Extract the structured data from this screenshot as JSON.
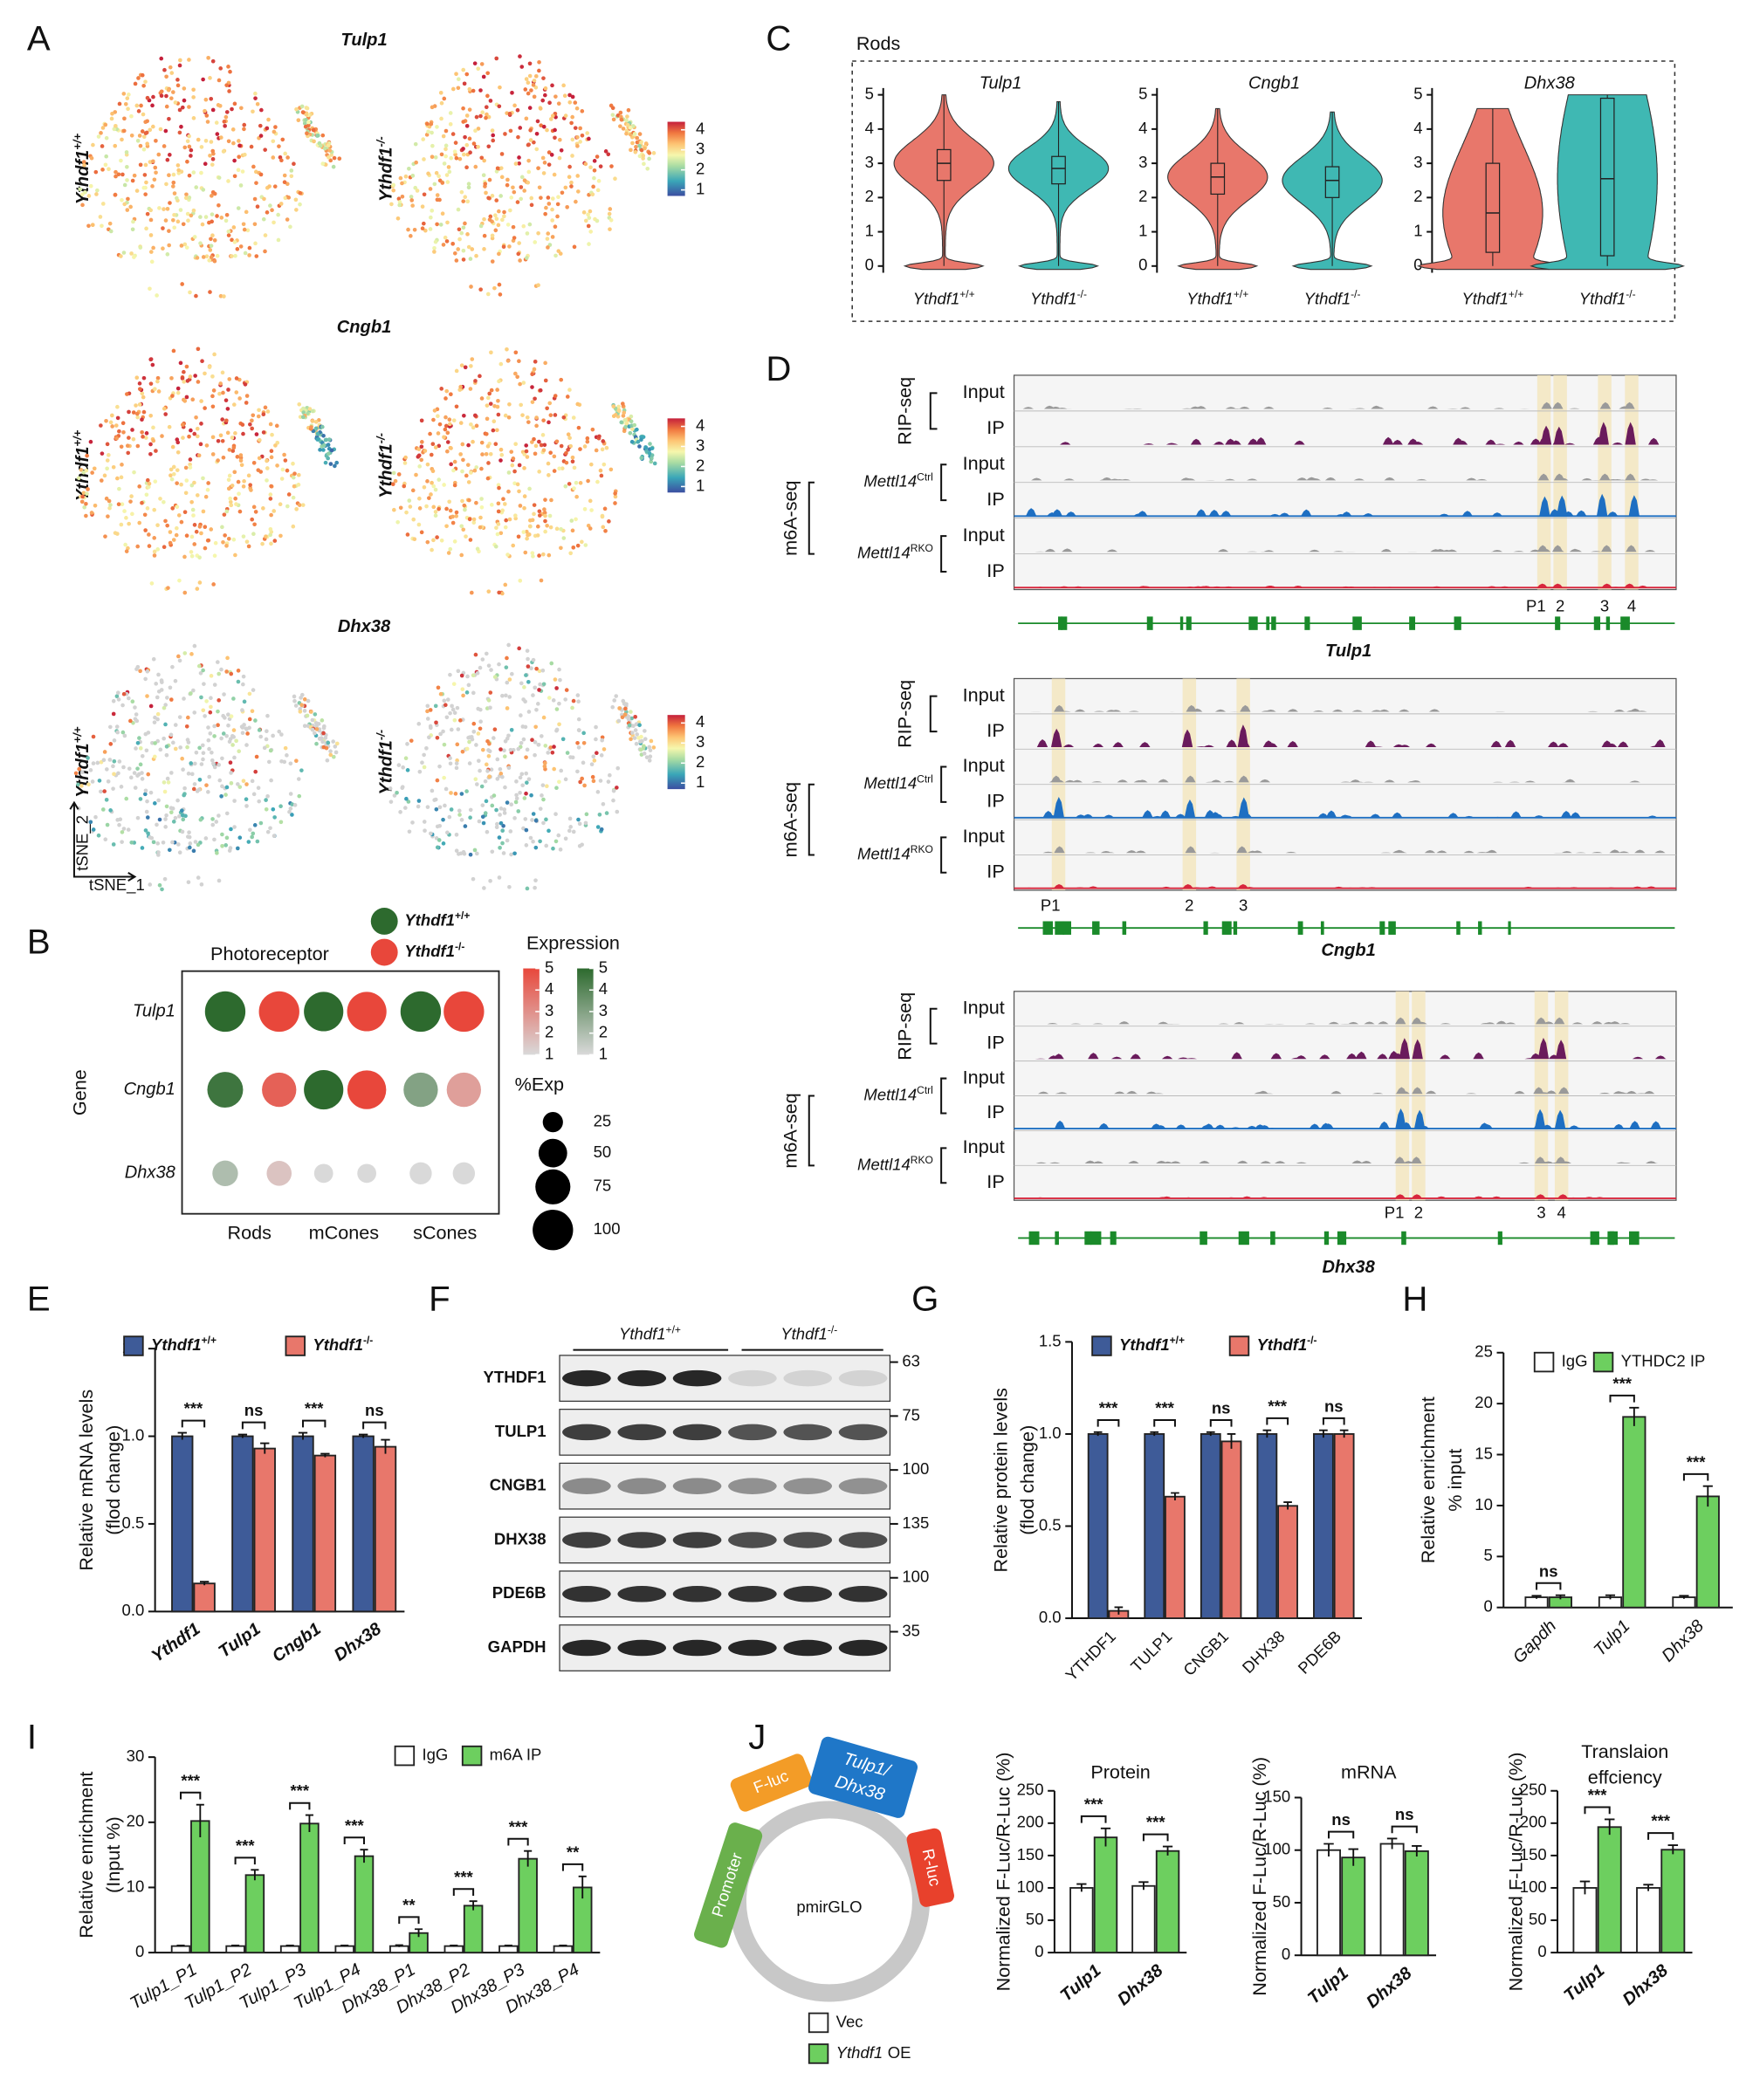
{
  "panel_labels": [
    "A",
    "B",
    "C",
    "D",
    "E",
    "F",
    "G",
    "H",
    "I",
    "J"
  ],
  "genotypes": [
    {
      "name": "Ythdf1",
      "sup": "+/+"
    },
    {
      "name": "Ythdf1",
      "sup": "-/-"
    }
  ],
  "tsne": {
    "genes": [
      "Tulp1",
      "Cngb1",
      "Dhx38"
    ],
    "colorbar_ticks": [
      1,
      2,
      3,
      4
    ],
    "colorbar_lim": [
      0.7,
      4.4
    ],
    "x_axis": "tSNE_1",
    "y_axis": "tSNE_2"
  },
  "violin": {
    "title": "Rods",
    "ylim": [
      0,
      5
    ],
    "yticks": [
      0,
      1,
      2,
      3,
      4,
      5
    ],
    "colors": [
      "#e8776b",
      "#3fb8b3"
    ],
    "genes": [
      "Tulp1",
      "Cngb1",
      "Dhx38"
    ],
    "boxes": [
      [
        [
          2.5,
          3.0,
          3.4
        ],
        [
          2.4,
          2.85,
          3.2
        ]
      ],
      [
        [
          2.1,
          2.6,
          3.0
        ],
        [
          2.0,
          2.5,
          2.9
        ]
      ],
      [
        [
          0.4,
          1.55,
          3.0
        ],
        [
          0.3,
          2.55,
          4.9
        ]
      ]
    ]
  },
  "dotplot": {
    "title": "Photoreceptor",
    "y_label": "Gene",
    "genes": [
      "Tulp1",
      "Cngb1",
      "Dhx38"
    ],
    "cell_types": [
      "Rods",
      "mCones",
      "sCones"
    ],
    "colors": [
      "#2d6a2e",
      "#e8473b"
    ],
    "expression_label": "Expression",
    "expression_ticks": [
      5,
      4,
      3,
      2,
      1
    ],
    "expression_lim": [
      1,
      5
    ],
    "size_label": "%Exp",
    "size_ticks": [
      25,
      50,
      75,
      100
    ],
    "expression": [
      [
        [
          5,
          5
        ],
        [
          5,
          5
        ],
        [
          5,
          5
        ]
      ],
      [
        [
          4.6,
          4.3
        ],
        [
          5,
          5
        ],
        [
          3.0,
          2.6
        ]
      ],
      [
        [
          2.0,
          1.6
        ],
        [
          1,
          1
        ],
        [
          1,
          1
        ]
      ]
    ],
    "pct": [
      [
        [
          100,
          100
        ],
        [
          95,
          95
        ],
        [
          100,
          100
        ]
      ],
      [
        [
          78,
          72
        ],
        [
          95,
          92
        ],
        [
          72,
          72
        ]
      ],
      [
        [
          40,
          38
        ],
        [
          22,
          22
        ],
        [
          30,
          30
        ]
      ]
    ]
  },
  "tracks": {
    "assays": [
      "RIP-seq",
      "m6A-seq"
    ],
    "rows": [
      "Input",
      "IP"
    ],
    "conditions": [
      {
        "name": "Mettl14",
        "sup": "Ctrl"
      },
      {
        "name": "Mettl14",
        "sup": "RKO"
      }
    ],
    "genes": [
      {
        "name": "Tulp1",
        "peaks": [
          "P1",
          "2",
          "3",
          "4"
        ]
      },
      {
        "name": "Cngb1",
        "peaks": [
          "P1",
          "2",
          "3"
        ]
      },
      {
        "name": "Dhx38",
        "peaks": [
          "P1",
          "2",
          "3",
          "4"
        ]
      }
    ]
  },
  "blot": {
    "proteins": [
      "YTHDF1",
      "TULP1",
      "CNGB1",
      "DHX38",
      "PDE6B",
      "GAPDH"
    ],
    "mw": [
      63,
      75,
      100,
      135,
      100,
      35
    ]
  },
  "plasmid": {
    "name": "pmirGLO",
    "promoter": "Promoter",
    "fluc": "F-luc",
    "insert": [
      "Tulp1/",
      "Dhx38"
    ],
    "rluc": "R-luc"
  },
  "bars": [
    {
      "type": "bar",
      "y_label": [
        "Relative mRNA levels",
        "(flod change)"
      ],
      "categories": [
        "Ythdf1",
        "Tulp1",
        "Cngb1",
        "Dhx38"
      ],
      "series": [
        {
          "name": "Ythdf1",
          "sup": "+/+",
          "color": "#3e5b98",
          "values": [
            1.0,
            1.0,
            1.0,
            1.0
          ],
          "errors": [
            0.02,
            0.01,
            0.02,
            0.01
          ]
        },
        {
          "name": "Ythdf1",
          "sup": "-/-",
          "color": "#e8776b",
          "values": [
            0.16,
            0.93,
            0.89,
            0.94
          ],
          "errors": [
            0.01,
            0.03,
            0.01,
            0.04
          ]
        }
      ],
      "significance": [
        "***",
        "ns",
        "***",
        "ns"
      ],
      "ylim": [
        0,
        1.5
      ],
      "yticks": [
        {
          "value": 0,
          "label": "0.0"
        },
        {
          "value": 0.5,
          "label": "0.5"
        },
        {
          "value": 1,
          "label": "1.0"
        },
        {
          "value": 1.5,
          "label": "1.5"
        }
      ]
    },
    {
      "type": "bar",
      "y_label": [
        "Relative protein levels",
        "(flod change)"
      ],
      "categories": [
        "YTHDF1",
        "TULP1",
        "CNGB1",
        "DHX38",
        "PDE6B"
      ],
      "series": [
        {
          "name": "Ythdf1",
          "sup": "+/+",
          "color": "#3e5b98",
          "values": [
            1.0,
            1.0,
            1.0,
            1.0,
            1.0
          ],
          "errors": [
            0.01,
            0.01,
            0.01,
            0.02,
            0.02
          ]
        },
        {
          "name": "Ythdf1",
          "sup": "-/-",
          "color": "#e8776b",
          "values": [
            0.04,
            0.66,
            0.96,
            0.61,
            1.0
          ],
          "errors": [
            0.02,
            0.02,
            0.04,
            0.02,
            0.02
          ]
        }
      ],
      "significance": [
        "***",
        "***",
        "ns",
        "***",
        "ns"
      ],
      "ylim": [
        0,
        1.5
      ],
      "yticks": [
        {
          "value": 0,
          "label": "0.0"
        },
        {
          "value": 0.5,
          "label": "0.5"
        },
        {
          "value": 1,
          "label": "1.0"
        },
        {
          "value": 1.5,
          "label": "1.5"
        }
      ]
    },
    {
      "type": "bar",
      "y_label": [
        "Relative enrichment",
        "% input"
      ],
      "categories": [
        "Gapdh",
        "Tulp1",
        "Dhx38"
      ],
      "series": [
        {
          "name": "IgG",
          "color": "#ffffff",
          "values": [
            1.0,
            1.0,
            1.0
          ],
          "errors": [
            0.15,
            0.2,
            0.15
          ]
        },
        {
          "name": "YTHDC2 IP",
          "color": "#6dcf5f",
          "values": [
            1.0,
            18.7,
            10.9
          ],
          "errors": [
            0.2,
            0.9,
            1.0
          ]
        }
      ],
      "significance": [
        "ns",
        "***",
        "***"
      ],
      "ylim": [
        0,
        25
      ],
      "yticks": [
        0,
        5,
        10,
        15,
        20,
        25
      ]
    },
    {
      "type": "bar",
      "y_label": [
        "Relative  enrichment",
        "(Input %)"
      ],
      "categories": [
        "Tulp1_P1",
        "Tulp1_P2",
        "Tulp1_P3",
        "Tulp1_P4",
        "Dhx38_P1",
        "Dhx38_P2",
        "Dhx38_P3",
        "Dhx38_P4"
      ],
      "series": [
        {
          "name": "IgG",
          "color": "#ffffff",
          "values": [
            1,
            1,
            1,
            1,
            1,
            1,
            1,
            1
          ],
          "errors": [
            0.1,
            0.1,
            0.1,
            0.1,
            0.15,
            0.1,
            0.1,
            0.1
          ]
        },
        {
          "name": "m6A IP",
          "color": "#6dcf5f",
          "values": [
            20.2,
            11.9,
            19.8,
            14.8,
            3.0,
            7.2,
            14.4,
            10.0
          ],
          "errors": [
            2.5,
            0.8,
            1.3,
            1.0,
            0.6,
            0.7,
            1.2,
            1.7
          ]
        }
      ],
      "significance": [
        "***",
        "***",
        "***",
        "***",
        "**",
        "***",
        "***",
        "**"
      ],
      "ylim": [
        0,
        30
      ],
      "yticks": [
        0,
        10,
        20,
        30
      ]
    },
    {
      "type": "bar",
      "title": [
        "Protein"
      ],
      "y_label": [
        "Normalized F-Luc/R-Luc (%)"
      ],
      "categories": [
        "Tulp1",
        "Dhx38"
      ],
      "series": [
        {
          "name": "Vec",
          "color": "#ffffff",
          "values": [
            100,
            103
          ],
          "errors": [
            6,
            6
          ]
        },
        {
          "name": "Ythdf1",
          "tail": "OE",
          "color": "#6dcf5f",
          "values": [
            178,
            157
          ],
          "errors": [
            14,
            7
          ]
        }
      ],
      "significance": [
        "***",
        "***"
      ],
      "ylim": [
        0,
        250
      ],
      "yticks": [
        0,
        50,
        100,
        150,
        200,
        250
      ]
    },
    {
      "type": "bar",
      "title": [
        "mRNA"
      ],
      "y_label": [
        "Normalized F-Luc/R-Luc (%)"
      ],
      "categories": [
        "Tulp1",
        "Dhx38"
      ],
      "series": [
        {
          "color": "#ffffff",
          "values": [
            100,
            106
          ],
          "errors": [
            6,
            5
          ]
        },
        {
          "color": "#6dcf5f",
          "values": [
            93,
            99
          ],
          "errors": [
            8,
            5
          ]
        }
      ],
      "significance": [
        "ns",
        "ns"
      ],
      "ylim": [
        0,
        150
      ],
      "yticks": [
        0,
        50,
        100,
        150
      ]
    },
    {
      "type": "bar",
      "title": [
        "Translaion",
        "effciency"
      ],
      "y_label": [
        "Normalized F-Luc/R-Luc (%)"
      ],
      "categories": [
        "Tulp1",
        "Dhx38"
      ],
      "series": [
        {
          "color": "#ffffff",
          "values": [
            100,
            100
          ],
          "errors": [
            10,
            5
          ]
        },
        {
          "color": "#6dcf5f",
          "values": [
            194,
            159
          ],
          "errors": [
            12,
            7
          ]
        }
      ],
      "significance": [
        "***",
        "***"
      ],
      "ylim": [
        0,
        250
      ],
      "yticks": [
        0,
        50,
        100,
        150,
        200,
        250
      ]
    }
  ]
}
